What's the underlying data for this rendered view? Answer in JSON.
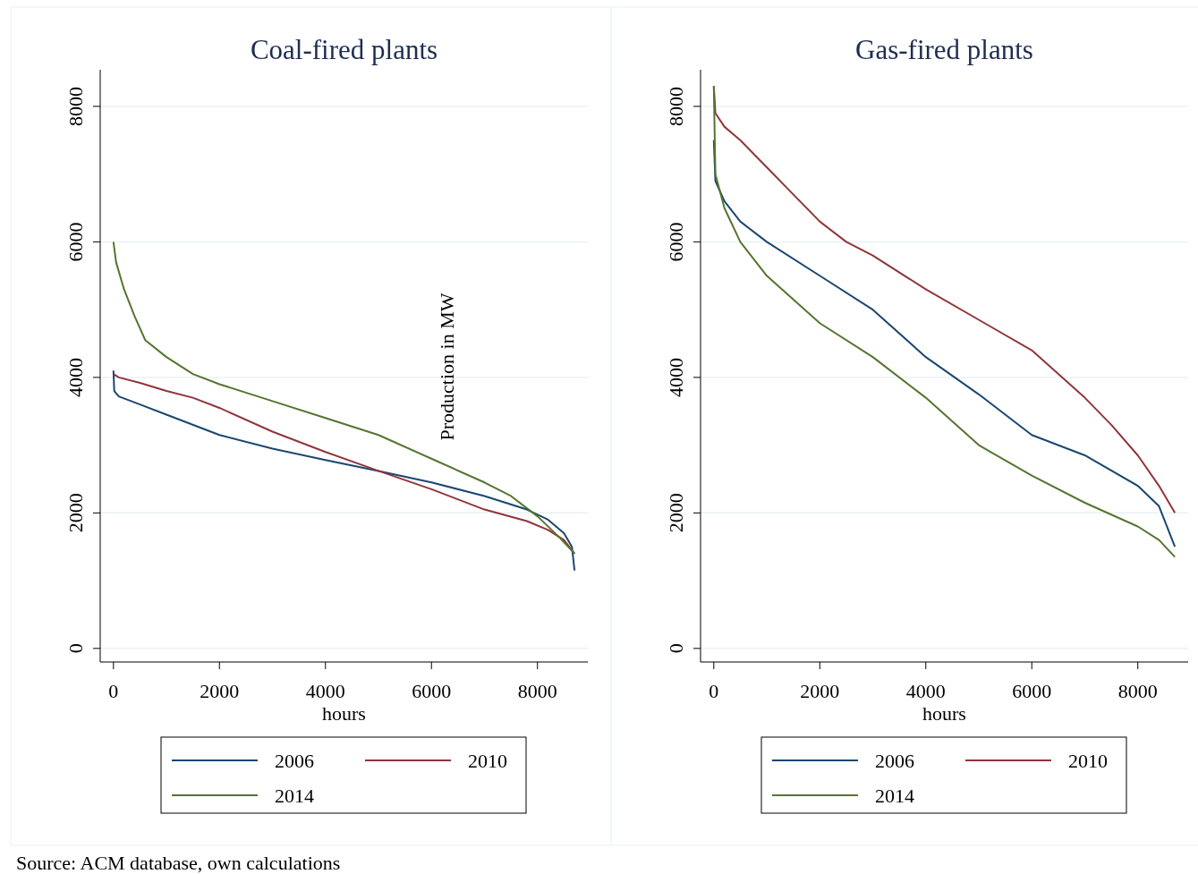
{
  "chart_data": [
    {
      "type": "line",
      "title": "Coal-fired plants",
      "xlabel": "hours",
      "ylabel": "Production in MW",
      "xlim": [
        -250,
        8950
      ],
      "ylim": [
        -200,
        8540
      ],
      "xticks": [
        0,
        2000,
        4000,
        6000,
        8000
      ],
      "yticks": [
        0,
        2000,
        4000,
        6000,
        8000
      ],
      "grid": "y",
      "legend": "bottom",
      "annotations": [
        "Source: ACM database, own calculations"
      ],
      "series": [
        {
          "name": "2006",
          "color": "#1a476f",
          "x": [
            0,
            15,
            100,
            500,
            1000,
            2000,
            3000,
            4000,
            5000,
            6000,
            7000,
            7800,
            8200,
            8500,
            8650,
            8700
          ],
          "values": [
            4100,
            3800,
            3720,
            3600,
            3450,
            3150,
            2950,
            2780,
            2620,
            2450,
            2250,
            2050,
            1900,
            1700,
            1500,
            1150
          ]
        },
        {
          "name": "2010",
          "color": "#90353b",
          "x": [
            0,
            100,
            500,
            1000,
            1500,
            2000,
            3000,
            4000,
            5000,
            6000,
            7000,
            7800,
            8200,
            8500,
            8700
          ],
          "values": [
            4050,
            4000,
            3920,
            3800,
            3700,
            3550,
            3200,
            2900,
            2620,
            2350,
            2050,
            1880,
            1750,
            1600,
            1400
          ]
        },
        {
          "name": "2014",
          "color": "#55752f",
          "x": [
            0,
            50,
            200,
            400,
            600,
            1000,
            1500,
            2000,
            3000,
            4000,
            5000,
            6000,
            7000,
            7500,
            8000,
            8400,
            8700
          ],
          "values": [
            6000,
            5700,
            5300,
            4900,
            4550,
            4300,
            4050,
            3900,
            3650,
            3400,
            3150,
            2800,
            2450,
            2250,
            1950,
            1650,
            1400
          ]
        }
      ]
    },
    {
      "type": "line",
      "title": "Gas-fired plants",
      "xlabel": "hours",
      "xlim": [
        -250,
        8950
      ],
      "ylim": [
        -200,
        8540
      ],
      "xticks": [
        0,
        2000,
        4000,
        6000,
        8000
      ],
      "yticks": [
        0,
        2000,
        4000,
        6000,
        8000
      ],
      "grid": "y",
      "legend": "bottom",
      "series": [
        {
          "name": "2006",
          "color": "#1a476f",
          "x": [
            0,
            30,
            200,
            500,
            1000,
            2000,
            3000,
            4000,
            5000,
            6000,
            7000,
            8000,
            8400,
            8600,
            8700
          ],
          "values": [
            7500,
            6900,
            6600,
            6300,
            6000,
            5500,
            5000,
            4300,
            3750,
            3150,
            2850,
            2400,
            2100,
            1700,
            1500
          ]
        },
        {
          "name": "2010",
          "color": "#90353b",
          "x": [
            0,
            30,
            200,
            500,
            1000,
            1500,
            2000,
            2500,
            3000,
            4000,
            5000,
            6000,
            7000,
            7500,
            8000,
            8400,
            8700
          ],
          "values": [
            8300,
            7900,
            7700,
            7500,
            7100,
            6700,
            6300,
            6000,
            5800,
            5300,
            4850,
            4400,
            3700,
            3300,
            2850,
            2400,
            2000
          ]
        },
        {
          "name": "2014",
          "color": "#55752f",
          "x": [
            0,
            30,
            200,
            500,
            1000,
            2000,
            3000,
            4000,
            5000,
            6000,
            7000,
            8000,
            8400,
            8700
          ],
          "values": [
            8300,
            7000,
            6500,
            6000,
            5500,
            4800,
            4300,
            3700,
            3000,
            2550,
            2150,
            1800,
            1600,
            1350
          ]
        }
      ]
    }
  ]
}
